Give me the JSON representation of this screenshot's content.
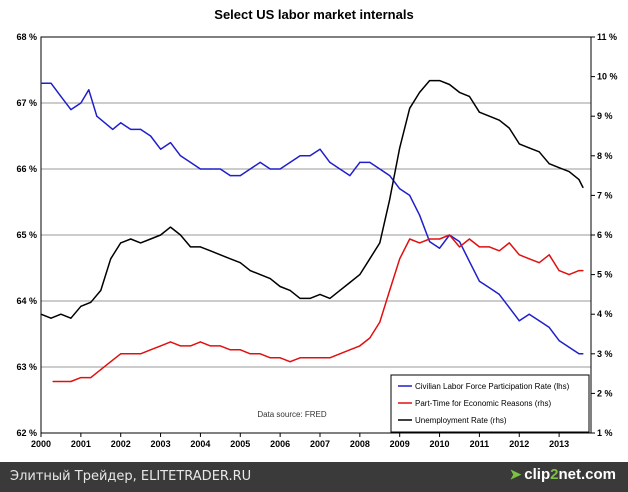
{
  "chart_data": {
    "type": "line",
    "title": "Select US labor market internals",
    "source_note": "Data source: FRED",
    "x_ticks": [
      "2000",
      "2001",
      "2002",
      "2003",
      "2004",
      "2005",
      "2006",
      "2007",
      "2008",
      "2009",
      "2010",
      "2011",
      "2012",
      "2013"
    ],
    "xlim": [
      2000,
      2013.8
    ],
    "left_axis": {
      "ylim": [
        62,
        68
      ],
      "ticks": [
        "62 %",
        "63 %",
        "64 %",
        "65 %",
        "66 %",
        "67 %",
        "68 %"
      ]
    },
    "right_axis": {
      "ylim": [
        1,
        11
      ],
      "ticks": [
        "1 %",
        "2 %",
        "3 %",
        "4 %",
        "5 %",
        "6 %",
        "7 %",
        "8 %",
        "9 %",
        "10 %",
        "11 %"
      ]
    },
    "grid": "horizontal",
    "legend_position": "bottom-right",
    "series": [
      {
        "name": "Civilian Labor Force Participation Rate (lhs)",
        "axis": "left",
        "color": "#1f1fcc",
        "x": [
          2000,
          2000.25,
          2000.5,
          2000.75,
          2001,
          2001.2,
          2001.4,
          2001.6,
          2001.8,
          2002,
          2002.25,
          2002.5,
          2002.75,
          2003,
          2003.25,
          2003.5,
          2003.75,
          2004,
          2004.25,
          2004.5,
          2004.75,
          2005,
          2005.25,
          2005.5,
          2005.75,
          2006,
          2006.25,
          2006.5,
          2006.75,
          2007,
          2007.25,
          2007.5,
          2007.75,
          2008,
          2008.25,
          2008.5,
          2008.75,
          2009,
          2009.25,
          2009.5,
          2009.75,
          2010,
          2010.25,
          2010.5,
          2010.75,
          2011,
          2011.25,
          2011.5,
          2011.75,
          2012,
          2012.25,
          2012.5,
          2012.75,
          2013,
          2013.25,
          2013.5,
          2013.6
        ],
        "y": [
          67.3,
          67.3,
          67.1,
          66.9,
          67.0,
          67.2,
          66.8,
          66.7,
          66.6,
          66.7,
          66.6,
          66.6,
          66.5,
          66.3,
          66.4,
          66.2,
          66.1,
          66.0,
          66.0,
          66.0,
          65.9,
          65.9,
          66.0,
          66.1,
          66.0,
          66.0,
          66.1,
          66.2,
          66.2,
          66.3,
          66.1,
          66.0,
          65.9,
          66.1,
          66.1,
          66.0,
          65.9,
          65.7,
          65.6,
          65.3,
          64.9,
          64.8,
          65.0,
          64.9,
          64.6,
          64.3,
          64.2,
          64.1,
          63.9,
          63.7,
          63.8,
          63.7,
          63.6,
          63.4,
          63.3,
          63.2,
          63.2
        ]
      },
      {
        "name": "Part-Time for Economic Reasons (rhs)",
        "axis": "right",
        "color": "#e01010",
        "x": [
          2000.3,
          2000.5,
          2000.75,
          2001,
          2001.25,
          2001.5,
          2001.75,
          2002,
          2002.25,
          2002.5,
          2002.75,
          2003,
          2003.25,
          2003.5,
          2003.75,
          2004,
          2004.25,
          2004.5,
          2004.75,
          2005,
          2005.25,
          2005.5,
          2005.75,
          2006,
          2006.25,
          2006.5,
          2006.75,
          2007,
          2007.25,
          2007.5,
          2007.75,
          2008,
          2008.25,
          2008.5,
          2008.75,
          2009,
          2009.25,
          2009.5,
          2009.75,
          2010,
          2010.25,
          2010.5,
          2010.75,
          2011,
          2011.25,
          2011.5,
          2011.75,
          2012,
          2012.25,
          2012.5,
          2012.75,
          2013,
          2013.25,
          2013.5,
          2013.6
        ],
        "y": [
          2.3,
          2.3,
          2.3,
          2.4,
          2.4,
          2.6,
          2.8,
          3.0,
          3.0,
          3.0,
          3.1,
          3.2,
          3.3,
          3.2,
          3.2,
          3.3,
          3.2,
          3.2,
          3.1,
          3.1,
          3.0,
          3.0,
          2.9,
          2.9,
          2.8,
          2.9,
          2.9,
          2.9,
          2.9,
          3.0,
          3.1,
          3.2,
          3.4,
          3.8,
          4.6,
          5.4,
          5.9,
          5.8,
          5.9,
          5.9,
          6.0,
          5.7,
          5.9,
          5.7,
          5.7,
          5.6,
          5.8,
          5.5,
          5.4,
          5.3,
          5.5,
          5.1,
          5.0,
          5.1,
          5.1
        ]
      },
      {
        "name": "Unemployment Rate (rhs)",
        "axis": "right",
        "color": "#000000",
        "x": [
          2000,
          2000.25,
          2000.5,
          2000.75,
          2001,
          2001.25,
          2001.5,
          2001.75,
          2002,
          2002.25,
          2002.5,
          2002.75,
          2003,
          2003.25,
          2003.5,
          2003.75,
          2004,
          2004.25,
          2004.5,
          2004.75,
          2005,
          2005.25,
          2005.5,
          2005.75,
          2006,
          2006.25,
          2006.5,
          2006.75,
          2007,
          2007.25,
          2007.5,
          2007.75,
          2008,
          2008.25,
          2008.5,
          2008.75,
          2009,
          2009.25,
          2009.5,
          2009.75,
          2010,
          2010.25,
          2010.5,
          2010.75,
          2011,
          2011.25,
          2011.5,
          2011.75,
          2012,
          2012.25,
          2012.5,
          2012.75,
          2013,
          2013.25,
          2013.5,
          2013.6
        ],
        "y": [
          4.0,
          3.9,
          4.0,
          3.9,
          4.2,
          4.3,
          4.6,
          5.4,
          5.8,
          5.9,
          5.8,
          5.9,
          6.0,
          6.2,
          6.0,
          5.7,
          5.7,
          5.6,
          5.5,
          5.4,
          5.3,
          5.1,
          5.0,
          4.9,
          4.7,
          4.6,
          4.4,
          4.4,
          4.5,
          4.4,
          4.6,
          4.8,
          5.0,
          5.4,
          5.8,
          6.9,
          8.2,
          9.2,
          9.6,
          9.9,
          9.9,
          9.8,
          9.6,
          9.5,
          9.1,
          9.0,
          8.9,
          8.7,
          8.3,
          8.2,
          8.1,
          7.8,
          7.7,
          7.6,
          7.4,
          7.2
        ]
      }
    ]
  },
  "footer": {
    "site_text": "Элитный Трейдер, ELITETRADER.RU",
    "logo_main": "clip",
    "logo_two": "2",
    "logo_rest": "net.com"
  }
}
